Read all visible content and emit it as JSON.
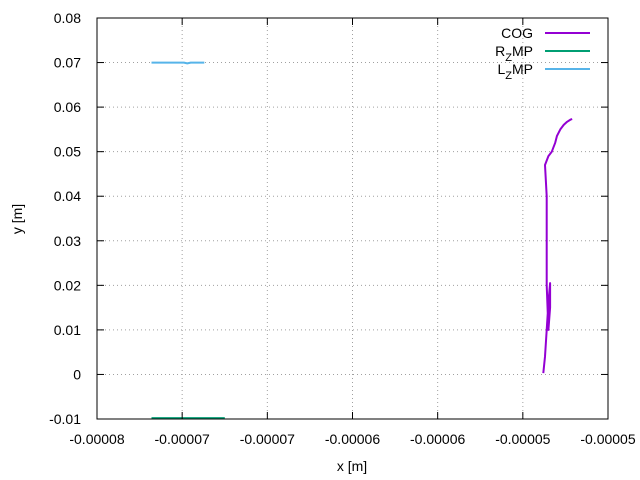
{
  "chart_data": {
    "type": "line",
    "xlabel": "x [m]",
    "ylabel": "y [m]",
    "xlim": [
      -8e-05,
      -5e-05
    ],
    "ylim": [
      -0.01,
      0.08
    ],
    "x_tick_values": [
      -8e-05,
      -7.5e-05,
      -7e-05,
      -6.5e-05,
      -6e-05,
      -5.5e-05,
      -5e-05
    ],
    "x_tick_labels": [
      "-0.00008",
      "-0.00007",
      "-0.00007",
      "-0.00006",
      "-0.00006",
      "-0.00005",
      "-0.00005"
    ],
    "y_tick_values": [
      -0.01,
      0,
      0.01,
      0.02,
      0.03,
      0.04,
      0.05,
      0.06,
      0.07,
      0.08
    ],
    "y_tick_labels": [
      "-0.01",
      "0",
      "0.01",
      "0.02",
      "0.03",
      "0.04",
      "0.05",
      "0.06",
      "0.07",
      "0.08"
    ],
    "grid": true,
    "legend_position": "top-right",
    "series": [
      {
        "name": "COG",
        "legend": {
          "main": "COG",
          "sub": "",
          "tail": ""
        },
        "color": "#9400d3",
        "x": [
          -5.38e-05,
          -5.37e-05,
          -5.36e-05,
          -5.35e-05,
          -5.34e-05,
          -5.34e-05,
          -5.35e-05,
          -5.36e-05,
          -5.36e-05,
          -5.36e-05,
          -5.37e-05,
          -5.35e-05,
          -5.33e-05,
          -5.32e-05,
          -5.31e-05,
          -5.3e-05,
          -5.28e-05,
          -5.26e-05,
          -5.24e-05,
          -5.22e-05,
          -5.21e-05
        ],
        "y": [
          0.0003,
          0.004,
          0.01,
          0.016,
          0.0205,
          0.015,
          0.01,
          0.02,
          0.03,
          0.04,
          0.047,
          0.049,
          0.05,
          0.051,
          0.052,
          0.0535,
          0.055,
          0.056,
          0.0567,
          0.0572,
          0.0573
        ]
      },
      {
        "name": "RZMP",
        "legend": {
          "main": "R",
          "sub": "Z",
          "tail": "MP"
        },
        "color": "#009e73",
        "x": [
          -7.68e-05,
          -7.25e-05
        ],
        "y": [
          -0.0098,
          -0.0098
        ]
      },
      {
        "name": "LZMP",
        "legend": {
          "main": "L",
          "sub": "Z",
          "tail": "MP"
        },
        "color": "#56b4e9",
        "x": [
          -7.68e-05,
          -7.49e-05,
          -7.47e-05,
          -7.45e-05,
          -7.37e-05
        ],
        "y": [
          0.07,
          0.07,
          0.0698,
          0.07,
          0.07
        ]
      }
    ]
  }
}
